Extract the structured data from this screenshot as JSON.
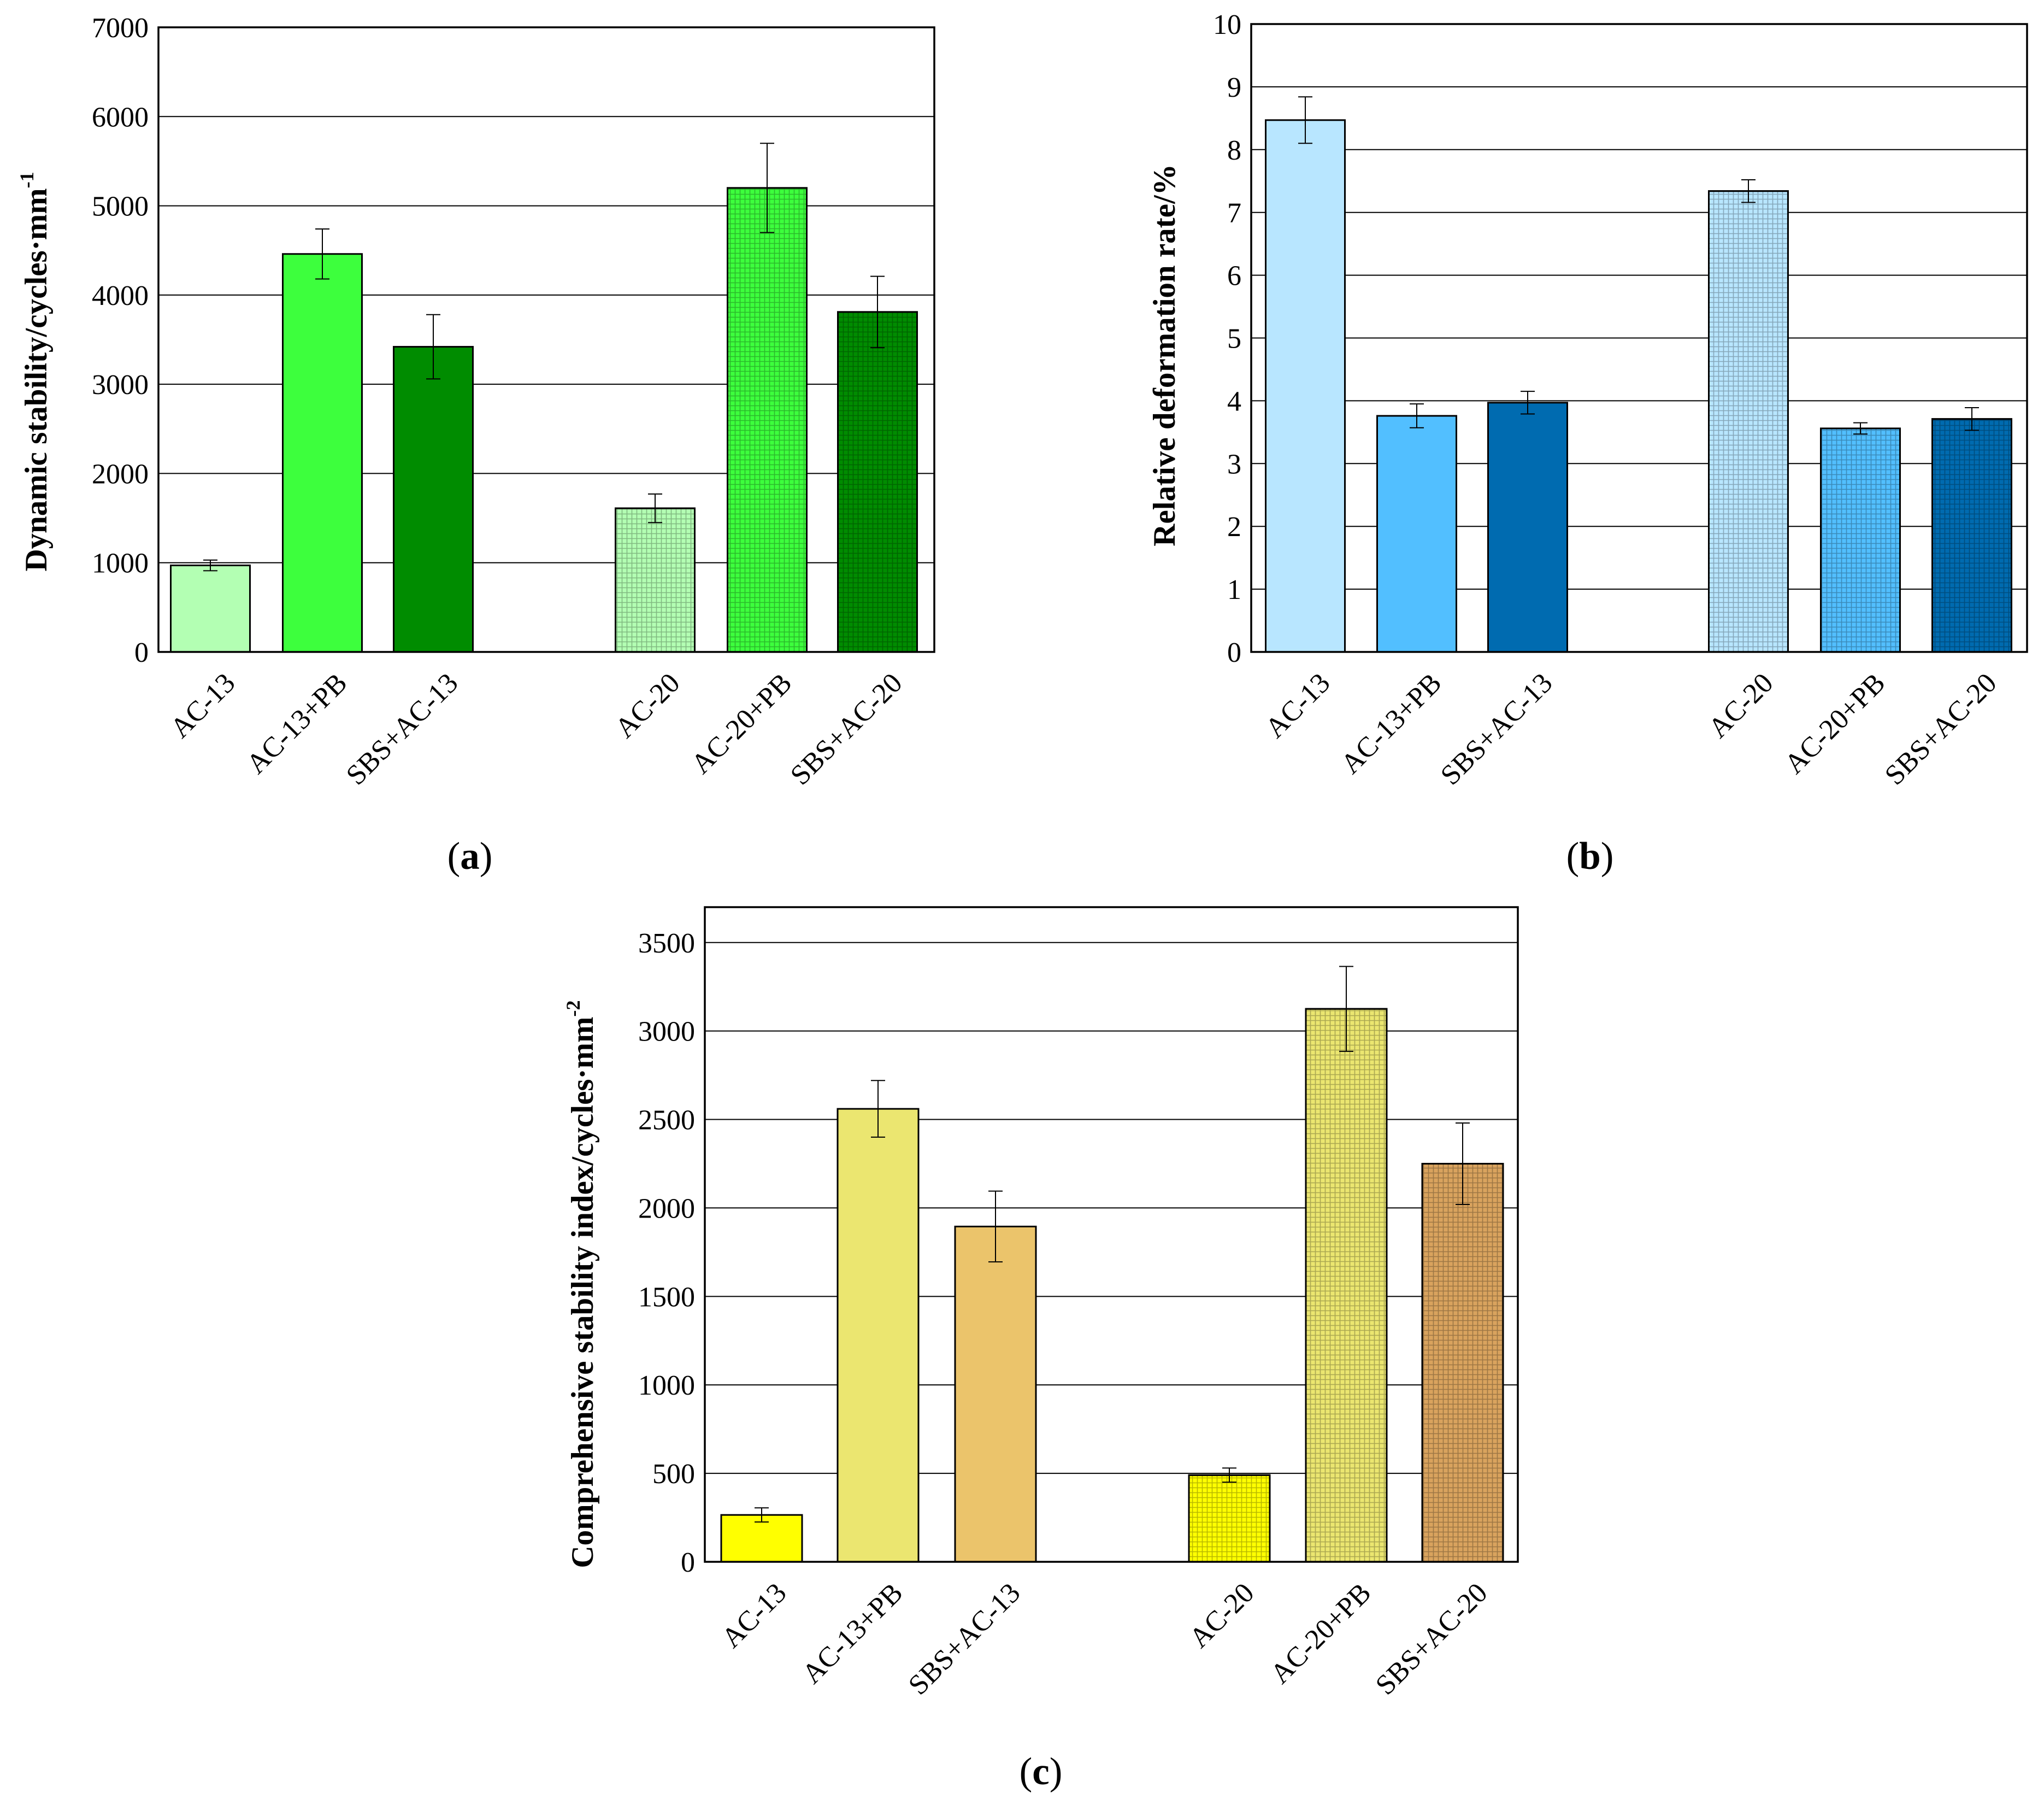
{
  "chart_data": [
    {
      "panel": "(a)",
      "panel_letter": "a",
      "type": "bar",
      "title": "",
      "xlabel": "",
      "ylabel_main": "Dynamic stability/cycles·mm",
      "ylabel_sup": "-1",
      "ylim": [
        0,
        7000
      ],
      "yticks": [
        0,
        1000,
        2000,
        3000,
        4000,
        5000,
        6000,
        7000
      ],
      "grid": "horizontal",
      "categories": [
        "AC-13",
        "AC-13+PB",
        "SBS+AC-13",
        "AC-20",
        "AC-20+PB",
        "SBS+AC-20"
      ],
      "values": [
        970,
        4460,
        3420,
        1610,
        5200,
        3810
      ],
      "errors": [
        60,
        280,
        360,
        160,
        500,
        400
      ],
      "colors": [
        "#b3ffb3",
        "#3dff3d",
        "#008c00",
        "#b3ffb3",
        "#3dff3d",
        "#008c00"
      ],
      "patterned": [
        false,
        false,
        false,
        true,
        true,
        true
      ]
    },
    {
      "panel": "(b)",
      "panel_letter": "b",
      "type": "bar",
      "title": "",
      "xlabel": "",
      "ylabel_main": "Relative deformation rate/%",
      "ylabel_sup": "",
      "ylim": [
        0,
        10
      ],
      "yticks": [
        0,
        1,
        2,
        3,
        4,
        5,
        6,
        7,
        8,
        9,
        10
      ],
      "grid": "horizontal",
      "categories": [
        "AC-13",
        "AC-13+PB",
        "SBS+AC-13",
        "AC-20",
        "AC-20+PB",
        "SBS+AC-20"
      ],
      "values": [
        8.47,
        3.76,
        3.97,
        7.34,
        3.56,
        3.71
      ],
      "errors": [
        0.37,
        0.19,
        0.18,
        0.18,
        0.09,
        0.18
      ],
      "colors": [
        "#b8e6ff",
        "#52bfff",
        "#006bb0",
        "#b8e6ff",
        "#52bfff",
        "#006bb0"
      ],
      "patterned": [
        false,
        false,
        false,
        true,
        true,
        true
      ]
    },
    {
      "panel": "(c)",
      "panel_letter": "c",
      "type": "bar",
      "title": "",
      "xlabel": "",
      "ylabel_main": "Comprehensive stability index/cycles·mm",
      "ylabel_sup": "-2",
      "ylim": [
        0,
        3700
      ],
      "yticks": [
        0,
        500,
        1000,
        1500,
        2000,
        2500,
        3000,
        3500
      ],
      "grid": "horizontal",
      "categories": [
        "AC-13",
        "AC-13+PB",
        "SBS+AC-13",
        "AC-20",
        "AC-20+PB",
        "SBS+AC-20"
      ],
      "values": [
        265,
        2560,
        1895,
        490,
        3125,
        2250
      ],
      "errors": [
        40,
        160,
        200,
        40,
        240,
        230
      ],
      "colors": [
        "#ffff00",
        "#ebe670",
        "#ebc46b",
        "#ffff00",
        "#ebe670",
        "#d9a35e"
      ],
      "patterned": [
        false,
        false,
        false,
        true,
        true,
        true
      ]
    }
  ]
}
